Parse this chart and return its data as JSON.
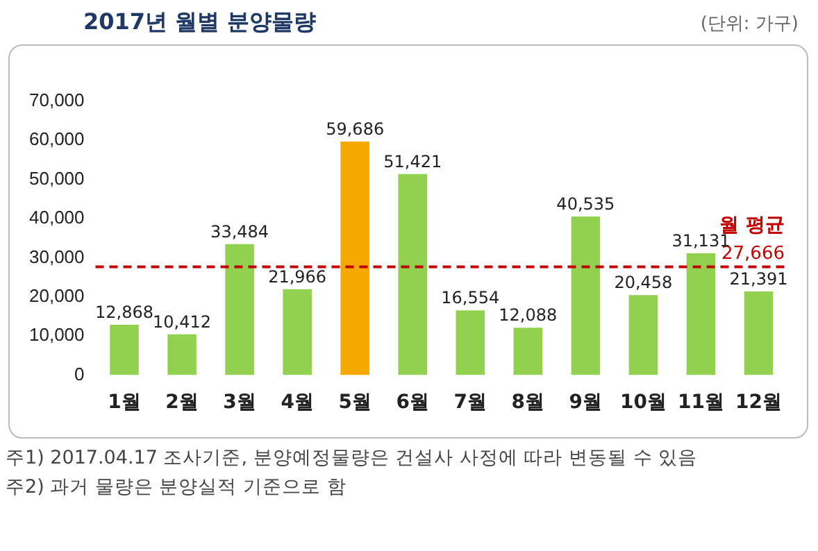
{
  "chart_data": {
    "type": "bar",
    "title": "2017년 월별 분양물량",
    "subtitle": "(단위: 가구)",
    "categories": [
      "1월",
      "2월",
      "3월",
      "4월",
      "5월",
      "6월",
      "7월",
      "8월",
      "9월",
      "10월",
      "11월",
      "12월"
    ],
    "values": [
      12868,
      10412,
      33484,
      21966,
      59686,
      51421,
      16554,
      12088,
      40535,
      20458,
      31131,
      21391
    ],
    "value_labels": [
      "12,868",
      "10,412",
      "33,484",
      "21,966",
      "59,686",
      "51,421",
      "16,554",
      "12,088",
      "40,535",
      "20,458",
      "31,131",
      "21,391"
    ],
    "colors": [
      "#92d050",
      "#92d050",
      "#92d050",
      "#92d050",
      "#f5a800",
      "#92d050",
      "#92d050",
      "#92d050",
      "#92d050",
      "#92d050",
      "#92d050",
      "#92d050"
    ],
    "ylim": [
      0,
      70000
    ],
    "yticks": [
      0,
      {
        "value": 10000,
        "label": "10,000"
      },
      {
        "value": 20000,
        "label": "20,000"
      },
      {
        "value": 30000,
        "label": "30,000"
      },
      {
        "value": 40000,
        "label": "40,000"
      },
      {
        "value": 50000,
        "label": "50,000"
      },
      {
        "value": 60000,
        "label": "60,000"
      },
      {
        "value": 70000,
        "label": "70,000"
      }
    ],
    "grid": false,
    "legend": false,
    "ref_lines": [
      {
        "axis": "y",
        "value": 27666,
        "label": "월 평균",
        "color": "#c00000",
        "line_style": "dashed"
      }
    ],
    "annotations": [
      {
        "text": "27,666",
        "y": 27666
      },
      "주1) 2017.04.17 조사기준, 분양예정물량은 건설사 사정에 따라 변동될 수 있음",
      "주2) 과거 물량은 분양실적 기준으로 함"
    ]
  }
}
